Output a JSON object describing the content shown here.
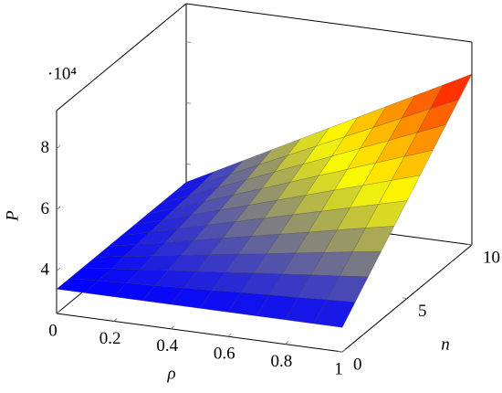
{
  "chart_data": {
    "type": "surface",
    "x_label": "ρ",
    "y_label": "n",
    "z_label": "P",
    "z_scale_label": "·10⁴",
    "x": [
      0,
      0.1,
      0.2,
      0.3,
      0.4,
      0.5,
      0.6,
      0.7,
      0.8,
      0.9,
      1
    ],
    "y": [
      0,
      1,
      2,
      3,
      4,
      5,
      6,
      7,
      8,
      9,
      10
    ],
    "z": [
      [
        3.4,
        3.4,
        3.4,
        3.4,
        3.4,
        3.4,
        3.4,
        3.4,
        3.4,
        3.4,
        3.4
      ],
      [
        3.4,
        3.45,
        3.5,
        3.54,
        3.59,
        3.64,
        3.69,
        3.74,
        3.78,
        3.83,
        3.88
      ],
      [
        3.4,
        3.5,
        3.59,
        3.69,
        3.78,
        3.88,
        3.98,
        4.07,
        4.17,
        4.26,
        4.36
      ],
      [
        3.4,
        3.54,
        3.69,
        3.83,
        3.98,
        4.12,
        4.26,
        4.41,
        4.55,
        4.7,
        4.84
      ],
      [
        3.4,
        3.59,
        3.78,
        3.98,
        4.17,
        4.36,
        4.55,
        4.74,
        4.94,
        5.13,
        5.32
      ],
      [
        3.4,
        3.64,
        3.88,
        4.12,
        4.36,
        4.6,
        4.84,
        5.08,
        5.32,
        5.56,
        5.8
      ],
      [
        3.4,
        3.69,
        3.98,
        4.26,
        4.55,
        4.84,
        5.13,
        5.42,
        5.7,
        5.99,
        6.28
      ],
      [
        3.4,
        3.74,
        4.07,
        4.41,
        4.74,
        5.08,
        5.42,
        5.75,
        6.09,
        6.42,
        6.76
      ],
      [
        3.4,
        3.78,
        4.17,
        4.55,
        4.94,
        5.32,
        5.7,
        6.09,
        6.47,
        6.86,
        7.24
      ],
      [
        3.4,
        3.83,
        4.26,
        4.7,
        5.13,
        5.56,
        5.99,
        6.42,
        6.86,
        7.29,
        7.72
      ],
      [
        3.4,
        3.88,
        4.36,
        4.84,
        5.32,
        5.8,
        6.28,
        6.76,
        7.24,
        7.72,
        8.2
      ]
    ],
    "xlim": [
      0,
      1
    ],
    "ylim": [
      0,
      10
    ],
    "zlim": [
      2.6,
      9.25
    ],
    "xticks": [
      0,
      0.2,
      0.4,
      0.6,
      0.8,
      1
    ],
    "yticks": [
      0,
      5,
      10
    ],
    "zticks": [
      4,
      6,
      8
    ],
    "colormap": [
      "#0000ff",
      "#ffff00",
      "#ff0000"
    ],
    "box": true
  }
}
